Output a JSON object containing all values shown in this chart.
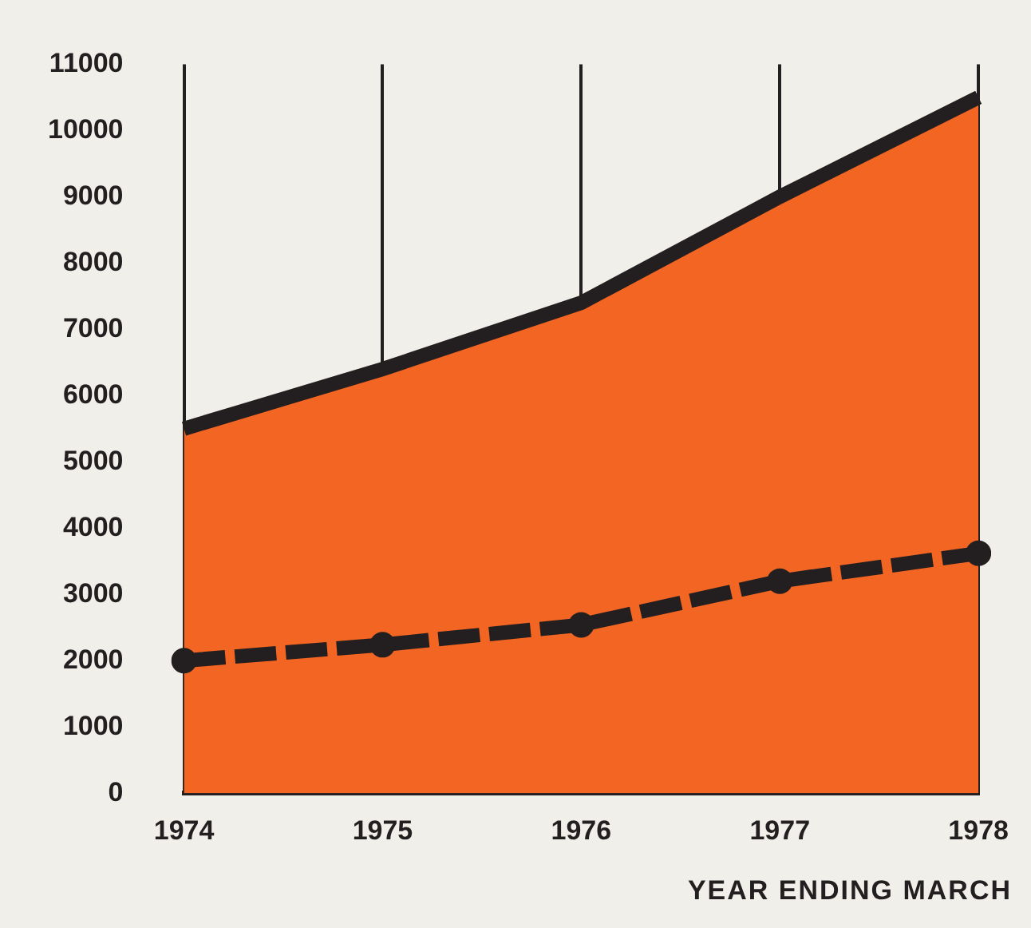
{
  "chart_data": {
    "type": "area",
    "xlabel": "YEAR ENDING MARCH",
    "categories": [
      "1974",
      "1975",
      "1976",
      "1977",
      "1978"
    ],
    "series": [
      {
        "color": "#f26522",
        "values": [
          5500,
          6400,
          7400,
          9000,
          10500
        ]
      },
      {
        "type": "line",
        "color": "#231f20",
        "values": [
          2000,
          2240,
          2540,
          3200,
          3620
        ],
        "marker": "circle",
        "line_style": "dashed"
      }
    ],
    "ylim": [
      0,
      11000
    ],
    "yticks": [
      0,
      1000,
      2000,
      3000,
      4000,
      5000,
      6000,
      7000,
      8000,
      9000,
      10000,
      11000
    ],
    "grid": "x",
    "legend": false
  }
}
